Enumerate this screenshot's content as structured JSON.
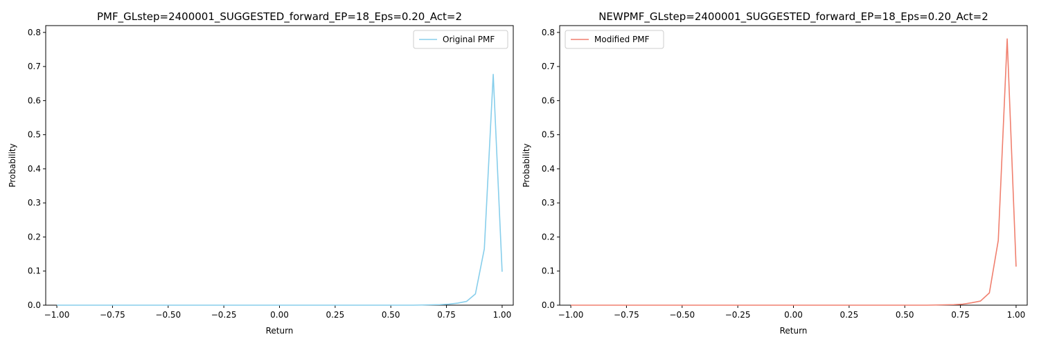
{
  "chart_data": [
    {
      "type": "line",
      "title": "PMF_GLstep=2400001_SUGGESTED_forward_EP=18_Eps=0.20_Act=2",
      "xlabel": "Return",
      "ylabel": "Probability",
      "xlim": [
        -1.05,
        1.05
      ],
      "ylim": [
        0,
        0.82
      ],
      "xticks": [
        -1.0,
        -0.75,
        -0.5,
        -0.25,
        0.0,
        0.25,
        0.5,
        0.75,
        1.0
      ],
      "xtick_labels": [
        "−1.00",
        "−0.75",
        "−0.50",
        "−0.25",
        "0.00",
        "0.25",
        "0.50",
        "0.75",
        "1.00"
      ],
      "yticks": [
        0.0,
        0.1,
        0.2,
        0.3,
        0.4,
        0.5,
        0.6,
        0.7,
        0.8
      ],
      "ytick_labels": [
        "0.0",
        "0.1",
        "0.2",
        "0.3",
        "0.4",
        "0.5",
        "0.6",
        "0.7",
        "0.8"
      ],
      "legend_position": "upper right",
      "grid": false,
      "series": [
        {
          "name": "Original PMF",
          "color": "#87CEEB",
          "x": [
            -1.0,
            -0.96,
            -0.92,
            -0.88,
            -0.84,
            -0.8,
            -0.76,
            -0.72,
            -0.68,
            -0.64,
            -0.6,
            -0.56,
            -0.52,
            -0.48,
            -0.44,
            -0.4,
            -0.36,
            -0.32,
            -0.28,
            -0.24,
            -0.2,
            -0.16,
            -0.12,
            -0.08,
            -0.04,
            0.0,
            0.04,
            0.08,
            0.12,
            0.16,
            0.2,
            0.24,
            0.28,
            0.32,
            0.36,
            0.4,
            0.44,
            0.48,
            0.52,
            0.56,
            0.6,
            0.64,
            0.68,
            0.72,
            0.76,
            0.8,
            0.84,
            0.88,
            0.92,
            0.96,
            1.0
          ],
          "y": [
            0,
            0,
            0,
            0,
            0,
            0,
            0,
            0,
            0,
            0,
            0,
            0,
            0,
            0,
            0,
            0,
            0,
            0,
            0,
            0,
            0,
            0,
            0,
            0,
            0,
            0,
            0,
            0,
            0,
            0,
            0,
            0,
            0,
            0,
            0,
            0,
            0,
            0,
            0,
            0,
            0,
            0.0005,
            0.001,
            0.0015,
            0.003,
            0.006,
            0.011,
            0.033,
            0.165,
            0.677,
            0.098
          ]
        }
      ]
    },
    {
      "type": "line",
      "title": "NEWPMF_GLstep=2400001_SUGGESTED_forward_EP=18_Eps=0.20_Act=2",
      "xlabel": "Return",
      "ylabel": "Probability",
      "xlim": [
        -1.05,
        1.05
      ],
      "ylim": [
        0,
        0.82
      ],
      "xticks": [
        -1.0,
        -0.75,
        -0.5,
        -0.25,
        0.0,
        0.25,
        0.5,
        0.75,
        1.0
      ],
      "xtick_labels": [
        "−1.00",
        "−0.75",
        "−0.50",
        "−0.25",
        "0.00",
        "0.25",
        "0.50",
        "0.75",
        "1.00"
      ],
      "yticks": [
        0.0,
        0.1,
        0.2,
        0.3,
        0.4,
        0.5,
        0.6,
        0.7,
        0.8
      ],
      "ytick_labels": [
        "0.0",
        "0.1",
        "0.2",
        "0.3",
        "0.4",
        "0.5",
        "0.6",
        "0.7",
        "0.8"
      ],
      "legend_position": "upper left",
      "grid": false,
      "series": [
        {
          "name": "Modified PMF",
          "color": "#F07F6E",
          "x": [
            -1.0,
            -0.96,
            -0.92,
            -0.88,
            -0.84,
            -0.8,
            -0.76,
            -0.72,
            -0.68,
            -0.64,
            -0.6,
            -0.56,
            -0.52,
            -0.48,
            -0.44,
            -0.4,
            -0.36,
            -0.32,
            -0.28,
            -0.24,
            -0.2,
            -0.16,
            -0.12,
            -0.08,
            -0.04,
            0.0,
            0.04,
            0.08,
            0.12,
            0.16,
            0.2,
            0.24,
            0.28,
            0.32,
            0.36,
            0.4,
            0.44,
            0.48,
            0.52,
            0.56,
            0.6,
            0.64,
            0.68,
            0.72,
            0.76,
            0.8,
            0.84,
            0.88,
            0.92,
            0.96,
            1.0
          ],
          "y": [
            0,
            0,
            0,
            0,
            0,
            0,
            0,
            0,
            0,
            0,
            0,
            0,
            0,
            0,
            0,
            0,
            0,
            0,
            0,
            0,
            0,
            0,
            0,
            0,
            0,
            0,
            0,
            0,
            0,
            0,
            0,
            0,
            0,
            0,
            0,
            0,
            0,
            0,
            0,
            0,
            0,
            0.0005,
            0.001,
            0.0015,
            0.003,
            0.007,
            0.012,
            0.036,
            0.19,
            0.781,
            0.113
          ]
        }
      ]
    }
  ]
}
